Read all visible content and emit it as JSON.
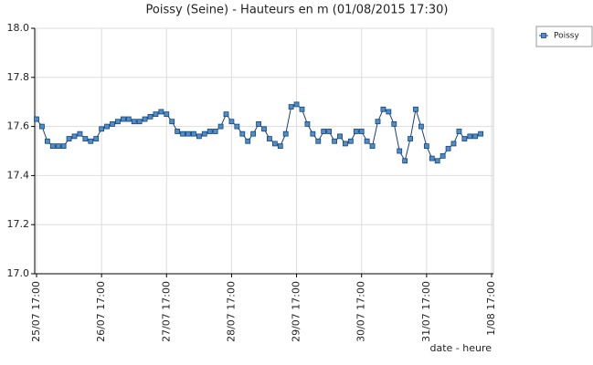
{
  "chart_data": {
    "type": "line",
    "title": "Poissy (Seine) - Hauteurs en m (01/08/2015 17:30)",
    "x_label": "date - heure",
    "categories": [
      "25/07 17:00",
      null,
      null,
      null,
      null,
      null,
      null,
      null,
      null,
      null,
      null,
      null,
      "26/07 17:00",
      null,
      null,
      null,
      null,
      null,
      null,
      null,
      null,
      null,
      null,
      null,
      "27/07 17:00",
      null,
      null,
      null,
      null,
      null,
      null,
      null,
      null,
      null,
      null,
      null,
      "28/07 17:00",
      null,
      null,
      null,
      null,
      null,
      null,
      null,
      null,
      null,
      null,
      null,
      "29/07 17:00",
      null,
      null,
      null,
      null,
      null,
      null,
      null,
      null,
      null,
      null,
      null,
      "30/07 17:00",
      null,
      null,
      null,
      null,
      null,
      null,
      null,
      null,
      null,
      null,
      null,
      "31/07 17:00",
      null,
      null,
      null,
      null,
      null,
      null,
      null,
      null,
      null,
      null,
      null,
      "1/08 17:00"
    ],
    "series": [
      {
        "name": "Poissy",
        "color": "#1a3f7a",
        "marker_color": "#4a90c8",
        "values": [
          17.63,
          17.6,
          17.54,
          17.52,
          17.52,
          17.52,
          17.55,
          17.56,
          17.57,
          17.55,
          17.54,
          17.55,
          17.59,
          17.6,
          17.61,
          17.62,
          17.63,
          17.63,
          17.62,
          17.62,
          17.63,
          17.64,
          17.65,
          17.66,
          17.65,
          17.62,
          17.58,
          17.57,
          17.57,
          17.57,
          17.56,
          17.57,
          17.58,
          17.58,
          17.6,
          17.65,
          17.62,
          17.6,
          17.57,
          17.54,
          17.57,
          17.61,
          17.59,
          17.55,
          17.53,
          17.52,
          17.57,
          17.68,
          17.69,
          17.67,
          17.61,
          17.57,
          17.54,
          17.58,
          17.58,
          17.54,
          17.56,
          17.53,
          17.54,
          17.58,
          17.58,
          17.54,
          17.52,
          17.62,
          17.67,
          17.66,
          17.61,
          17.5,
          17.46,
          17.55,
          17.67,
          17.6,
          17.52,
          17.47,
          17.46,
          17.48,
          17.51,
          17.53,
          17.58,
          17.55,
          17.56,
          17.56,
          17.57,
          null,
          null
        ]
      }
    ],
    "ylim": [
      17,
      18
    ],
    "yticks": [
      {
        "value": 17,
        "label": "17.0"
      },
      17.2,
      17.4,
      17.6,
      17.8,
      {
        "value": 18,
        "label": "18.0"
      }
    ],
    "grid": true,
    "legend": "top-right"
  }
}
